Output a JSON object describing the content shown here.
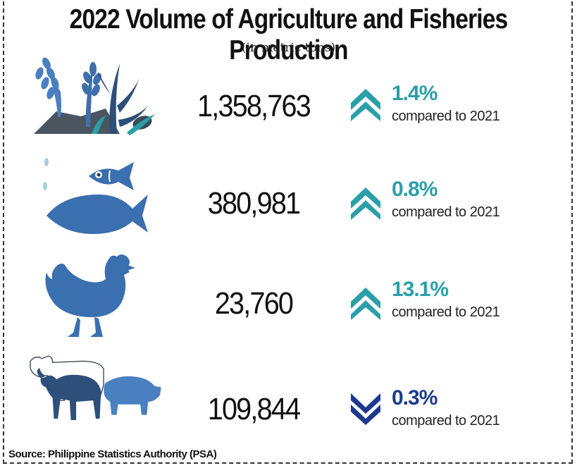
{
  "title": "2022 Volume of Agriculture and Fisheries Production",
  "subtitle": "(in metric tons)",
  "source": "Source: Philippine Statistics Authority (PSA)",
  "colors": {
    "up_teal": "#2a9fa8",
    "down_navy": "#1b3a8f",
    "icon_blue": "#4a7fc0",
    "icon_dark": "#2d4f7a"
  },
  "rows": [
    {
      "icon": "crops-icon",
      "value": "1,358,763",
      "change": "1.4%",
      "direction": "up",
      "comparison": "compared to 2021"
    },
    {
      "icon": "fish-icon",
      "value": "380,981",
      "change": "0.8%",
      "direction": "up",
      "comparison": "compared to 2021"
    },
    {
      "icon": "chicken-icon",
      "value": "23,760",
      "change": "13.1%",
      "direction": "up",
      "comparison": "compared to 2021"
    },
    {
      "icon": "livestock-icon",
      "value": "109,844",
      "change": "0.3%",
      "direction": "down",
      "comparison": "compared to 2021"
    }
  ]
}
